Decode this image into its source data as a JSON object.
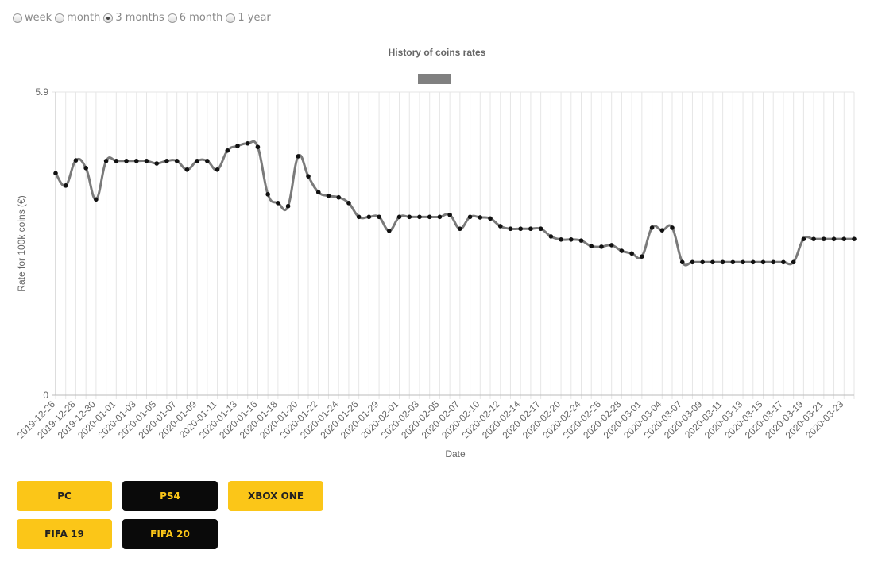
{
  "period_options": [
    {
      "label": "week",
      "checked": false
    },
    {
      "label": "month",
      "checked": false
    },
    {
      "label": "3 months",
      "checked": true
    },
    {
      "label": "6 month",
      "checked": false
    },
    {
      "label": "1 year",
      "checked": false
    }
  ],
  "chart_data": {
    "type": "line",
    "title": "History of coins rates",
    "x_label": "Date",
    "y_label": "Rate for 100k coins (€)",
    "categories": [
      "2019-12-26",
      null,
      "2019-12-28",
      null,
      "2019-12-30",
      null,
      "2020-01-01",
      null,
      "2020-01-03",
      null,
      "2020-01-05",
      null,
      "2020-01-07",
      null,
      "2020-01-09",
      null,
      "2020-01-11",
      null,
      "2020-01-13",
      null,
      "2020-01-16",
      null,
      "2020-01-18",
      null,
      "2020-01-20",
      null,
      "2020-01-22",
      null,
      "2020-01-24",
      null,
      "2020-01-26",
      null,
      "2020-01-29",
      null,
      "2020-02-01",
      null,
      "2020-02-03",
      null,
      "2020-02-05",
      null,
      "2020-02-07",
      null,
      "2020-02-10",
      null,
      "2020-02-12",
      null,
      "2020-02-14",
      null,
      "2020-02-17",
      null,
      "2020-02-20",
      null,
      "2020-02-24",
      null,
      "2020-02-26",
      null,
      "2020-02-28",
      null,
      "2020-03-01",
      null,
      "2020-03-04",
      null,
      "2020-03-07",
      null,
      "2020-03-09",
      null,
      "2020-03-11",
      null,
      "2020-03-13",
      null,
      "2020-03-15",
      null,
      "2020-03-17",
      null,
      "2020-03-19",
      null,
      "2020-03-21",
      null,
      "2020-03-23",
      null
    ],
    "series": [
      {
        "color": "#7a7a7a",
        "point_color": "#111111",
        "values": [
          4.32,
          4.08,
          4.57,
          4.42,
          3.81,
          4.56,
          4.56,
          4.56,
          4.56,
          4.56,
          4.51,
          4.56,
          4.56,
          4.39,
          4.56,
          4.56,
          4.39,
          4.76,
          4.85,
          4.9,
          4.83,
          3.91,
          3.74,
          3.68,
          4.65,
          4.26,
          3.95,
          3.88,
          3.85,
          3.74,
          3.47,
          3.47,
          3.47,
          3.2,
          3.47,
          3.47,
          3.47,
          3.47,
          3.47,
          3.51,
          3.24,
          3.47,
          3.46,
          3.44,
          3.29,
          3.24,
          3.24,
          3.24,
          3.24,
          3.09,
          3.03,
          3.03,
          3.01,
          2.9,
          2.89,
          2.92,
          2.81,
          2.76,
          2.7,
          3.26,
          3.21,
          3.26,
          2.59,
          2.59,
          2.59,
          2.59,
          2.59,
          2.59,
          2.59,
          2.59,
          2.59,
          2.59,
          2.59,
          2.59,
          3.04,
          3.04,
          3.04,
          3.04,
          3.04,
          3.04
        ]
      }
    ],
    "ylim": [
      0,
      5.9
    ],
    "yticks": [
      0,
      5.9
    ],
    "grid": true
  },
  "button_rows": [
    [
      {
        "label": "PC",
        "selected": false
      },
      {
        "label": "PS4",
        "selected": true
      },
      {
        "label": "XBOX ONE",
        "selected": false
      }
    ],
    [
      {
        "label": "FIFA 19",
        "selected": false
      },
      {
        "label": "FIFA 20",
        "selected": true
      }
    ]
  ]
}
